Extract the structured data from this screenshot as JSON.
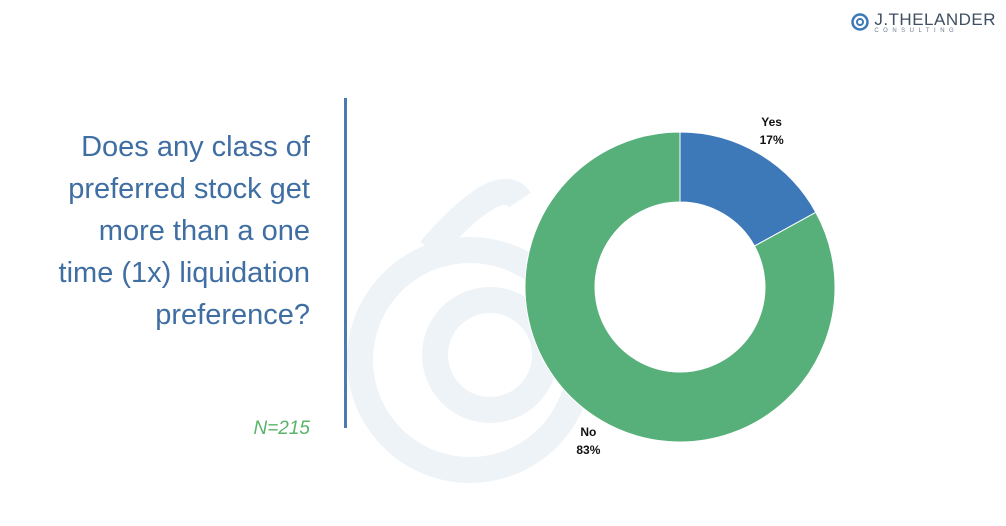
{
  "logo": {
    "name": "J.THELANDER",
    "tagline": "CONSULTING"
  },
  "chart_data": {
    "type": "donut",
    "title": "Does any class of preferred stock get more than a one time (1x) liquidation preference?",
    "subtitle": "N=215",
    "categories": [
      "Yes",
      "No"
    ],
    "values": [
      17,
      83
    ],
    "value_labels": [
      "17%",
      "83%"
    ],
    "colors": [
      "#3d78b8",
      "#57b07a"
    ]
  }
}
